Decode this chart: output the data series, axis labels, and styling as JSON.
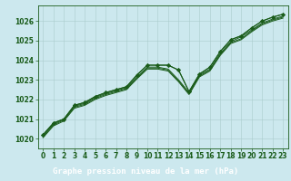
{
  "xlabel": "Graphe pression niveau de la mer (hPa)",
  "xlim": [
    -0.5,
    23.5
  ],
  "ylim": [
    1019.5,
    1026.8
  ],
  "yticks": [
    1020,
    1021,
    1022,
    1023,
    1024,
    1025,
    1026
  ],
  "xticks": [
    0,
    1,
    2,
    3,
    4,
    5,
    6,
    7,
    8,
    9,
    10,
    11,
    12,
    13,
    14,
    15,
    16,
    17,
    18,
    19,
    20,
    21,
    22,
    23
  ],
  "background_color": "#cce8ee",
  "grid_color": "#aacccc",
  "line_color": "#1a5c1a",
  "marker_color": "#1a5c1a",
  "label_color": "#1a5c1a",
  "footer_color": "#2d6e2d",
  "series1": [
    1020.2,
    1020.8,
    1021.0,
    1021.7,
    1021.85,
    1022.15,
    1022.35,
    1022.5,
    1022.65,
    1023.25,
    1023.75,
    1023.75,
    1023.75,
    1023.5,
    1022.4,
    1023.3,
    1023.65,
    1024.45,
    1025.05,
    1025.25,
    1025.65,
    1026.0,
    1026.2,
    1026.35
  ],
  "series2": [
    1020.15,
    1020.75,
    1021.0,
    1021.65,
    1021.8,
    1022.1,
    1022.3,
    1022.45,
    1022.6,
    1023.15,
    1023.65,
    1023.65,
    1023.55,
    1023.0,
    1022.35,
    1023.25,
    1023.55,
    1024.35,
    1024.95,
    1025.2,
    1025.55,
    1025.9,
    1026.1,
    1026.25
  ],
  "series3": [
    1020.1,
    1020.7,
    1020.95,
    1021.6,
    1021.75,
    1022.05,
    1022.25,
    1022.4,
    1022.55,
    1023.1,
    1023.6,
    1023.6,
    1023.5,
    1022.95,
    1022.3,
    1023.2,
    1023.5,
    1024.3,
    1024.9,
    1025.1,
    1025.5,
    1025.85,
    1026.05,
    1026.2
  ],
  "series4": [
    1020.05,
    1020.65,
    1020.9,
    1021.55,
    1021.7,
    1022.0,
    1022.2,
    1022.35,
    1022.5,
    1023.05,
    1023.55,
    1023.55,
    1023.45,
    1022.9,
    1022.25,
    1023.15,
    1023.45,
    1024.25,
    1024.85,
    1025.05,
    1025.45,
    1025.8,
    1026.0,
    1026.15
  ],
  "marker_series": [
    1020.2,
    1020.8,
    1021.0,
    1021.7,
    1021.85,
    1022.15,
    1022.35,
    1022.5,
    1022.65,
    1023.25,
    1023.75,
    1023.75,
    1023.75,
    1023.5,
    1022.4,
    1023.3,
    1023.65,
    1024.45,
    1025.05,
    1025.25,
    1025.65,
    1026.0,
    1026.2,
    1026.35
  ],
  "tick_fontsize": 5.5,
  "label_fontsize": 6.5
}
